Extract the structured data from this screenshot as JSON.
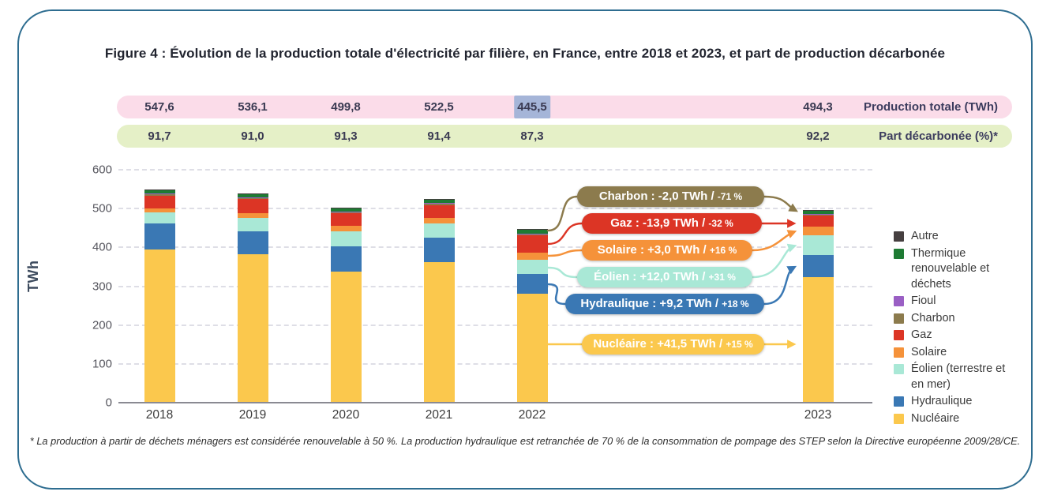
{
  "figure": {
    "title": "Figure 4 : Évolution de la production totale d'électricité par filière, en France, entre 2018 et 2023, et part de production décarbonée",
    "footnote": "* La production à partir de déchets ménagers est considérée renouvelable à 50 %. La production hydraulique est retranchée de 70 % de la consommation de pompage des STEP selon la Directive européenne 2009/28/CE."
  },
  "banners": {
    "production_totale": {
      "label": "Production totale (TWh)",
      "values": [
        "547,6",
        "536,1",
        "499,8",
        "522,5",
        "445,5",
        "494,3"
      ],
      "highlighted_value": "445,5",
      "bg": "#FBDCE9",
      "highlight_bg": "#A5B5D8"
    },
    "part_decarbonee": {
      "label": "Part décarbonée (%)*",
      "values": [
        "91,7",
        "91,0",
        "91,3",
        "91,4",
        "87,3",
        "92,2"
      ],
      "bg": "#E5F0C7"
    }
  },
  "chart_data": {
    "type": "bar",
    "stacked": true,
    "categories": [
      "2018",
      "2019",
      "2020",
      "2021",
      "2022",
      "2023"
    ],
    "ylabel": "TWh",
    "ylim": [
      0,
      600
    ],
    "yticks": [
      0,
      100,
      200,
      300,
      400,
      500,
      600
    ],
    "grid": "dashed-horizontal",
    "totals": [
      547.6,
      536.1,
      499.8,
      522.5,
      445.5,
      494.3
    ],
    "series": [
      {
        "name": "Nucléaire",
        "color": "#FBC84D",
        "values": [
          393.2,
          379.5,
          335.4,
          360.7,
          279.0,
          320.4
        ]
      },
      {
        "name": "Hydraulique",
        "color": "#3A78B4",
        "values": [
          67.3,
          60.0,
          65.1,
          62.5,
          49.6,
          58.8
        ]
      },
      {
        "name": "Éolien (terrestre et en mer)",
        "color": "#A9E8D6",
        "values": [
          28.1,
          34.1,
          39.7,
          36.8,
          38.1,
          50.1
        ]
      },
      {
        "name": "Solaire",
        "color": "#F5923A",
        "values": [
          10.2,
          11.6,
          12.6,
          14.3,
          18.6,
          21.6
        ]
      },
      {
        "name": "Gaz",
        "color": "#DC3525",
        "values": [
          31.1,
          38.6,
          34.5,
          32.6,
          43.5,
          29.6
        ]
      },
      {
        "name": "Charbon",
        "color": "#8C7B4D",
        "values": [
          5.8,
          1.6,
          1.4,
          3.8,
          2.8,
          0.8
        ]
      },
      {
        "name": "Fioul",
        "color": "#9A5FC4",
        "values": [
          2.2,
          2.0,
          1.7,
          2.0,
          2.5,
          2.0
        ]
      },
      {
        "name": "Thermique renouvelable et déchets",
        "color": "#1E7B33",
        "values": [
          9.2,
          8.2,
          8.9,
          9.3,
          10.9,
          10.5
        ]
      },
      {
        "name": "Autre",
        "color": "#463F40",
        "values": [
          0.5,
          0.5,
          0.5,
          0.5,
          0.5,
          0.5
        ]
      }
    ],
    "legend": {
      "position": "right",
      "items": [
        {
          "label": "Autre",
          "color": "#463F40"
        },
        {
          "label": "Thermique renouvelable et déchets",
          "color": "#1E7B33"
        },
        {
          "label": "Fioul",
          "color": "#9A5FC4"
        },
        {
          "label": "Charbon",
          "color": "#8C7B4D"
        },
        {
          "label": "Gaz",
          "color": "#DC3525"
        },
        {
          "label": "Solaire",
          "color": "#F5923A"
        },
        {
          "label": "Éolien (terrestre et en mer)",
          "color": "#A9E8D6"
        },
        {
          "label": "Hydraulique",
          "color": "#3A78B4"
        },
        {
          "label": "Nucléaire",
          "color": "#FBC84D"
        }
      ]
    }
  },
  "callouts": [
    {
      "id": "charbon",
      "name": "Charbon",
      "delta": "-2,0 TWh",
      "pct": "-71 %",
      "color": "#8C7B4D"
    },
    {
      "id": "gaz",
      "name": "Gaz",
      "delta": "-13,9 TWh",
      "pct": "-32 %",
      "color": "#DC3525"
    },
    {
      "id": "solaire",
      "name": "Solaire",
      "delta": "+3,0 TWh",
      "pct": "+16 %",
      "color": "#F5923A"
    },
    {
      "id": "eolien",
      "name": "Éolien",
      "delta": "+12,0 TWh",
      "pct": "+31 %",
      "color": "#A9E8D6"
    },
    {
      "id": "hydraulique",
      "name": "Hydraulique",
      "delta": "+9,2 TWh",
      "pct": "+18 %",
      "color": "#3A78B4"
    },
    {
      "id": "nucleaire",
      "name": "Nucléaire",
      "delta": "+41,5 TWh",
      "pct": "+15 %",
      "color": "#FBC84D"
    }
  ]
}
